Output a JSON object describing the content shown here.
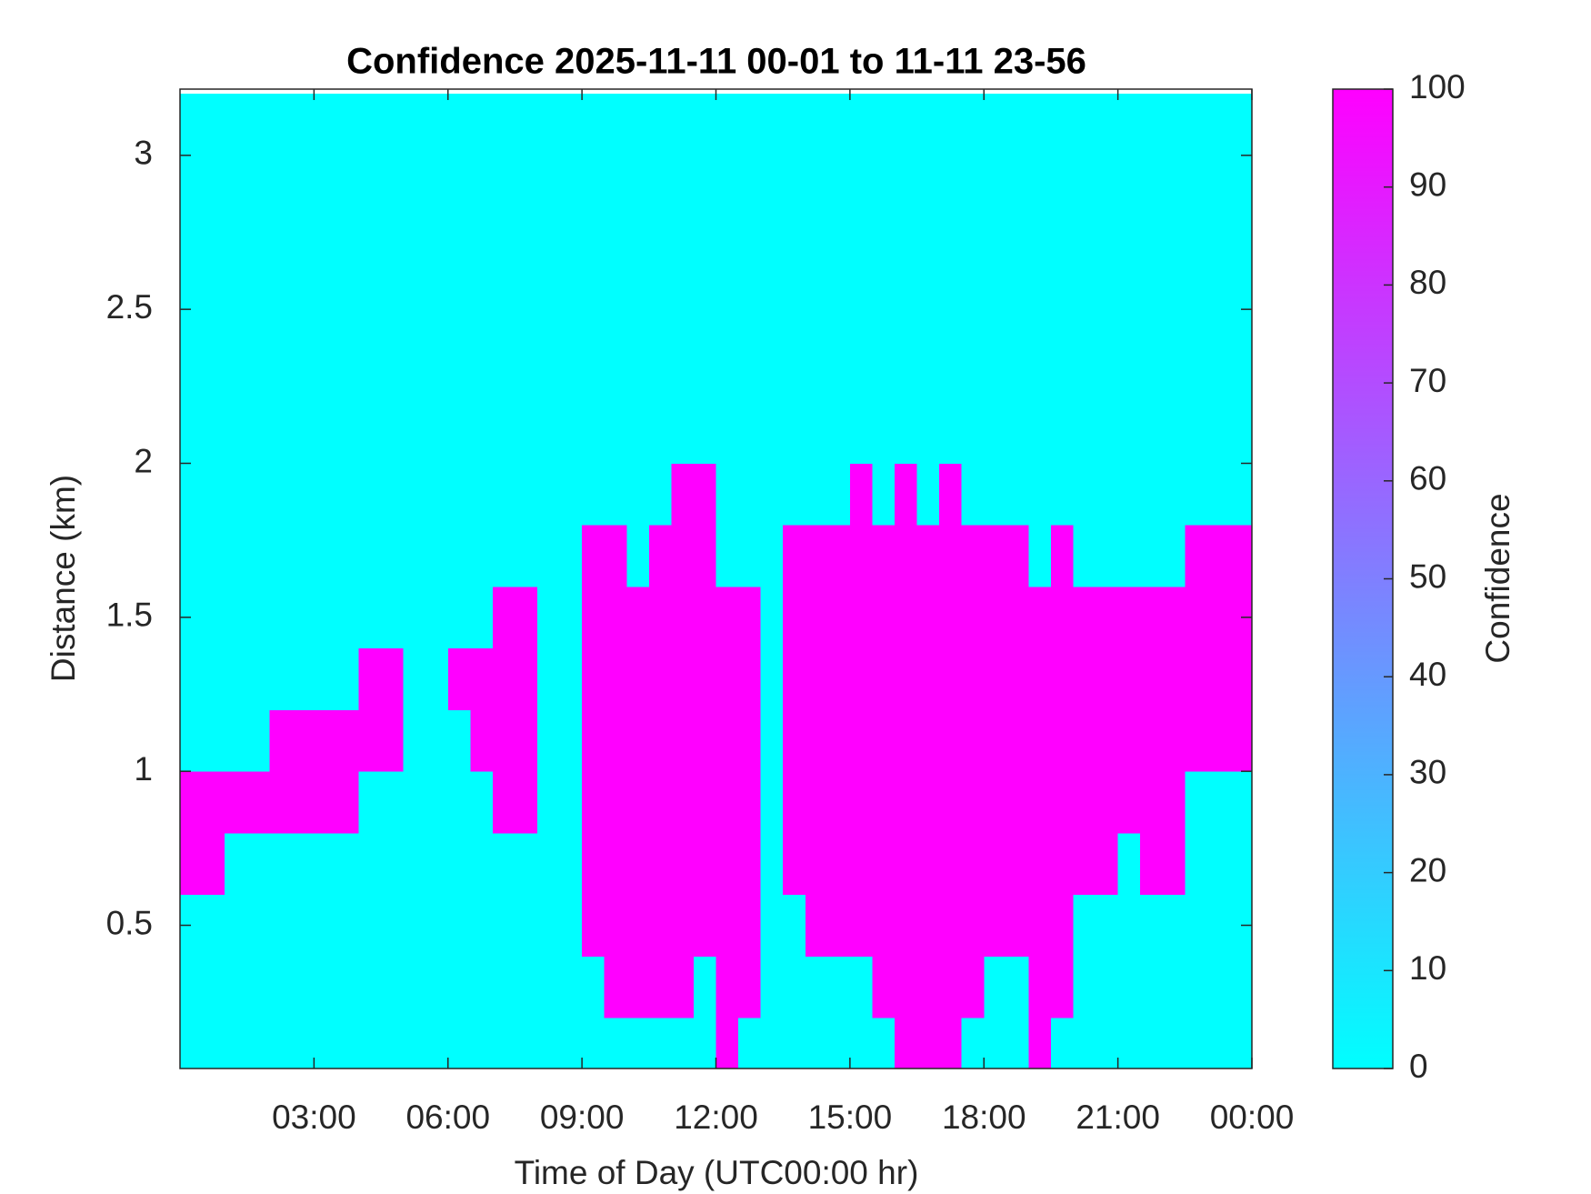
{
  "chart_data": {
    "type": "heatmap",
    "title": "Confidence 2025-11-11 00-01 to 11-11 23-56",
    "x_label": "Time of Day (UTC00:00 hr)",
    "y_label": "Distance (km)",
    "colorbar_label": "Confidence",
    "colormap": [
      "#00ffff",
      "#ff00ff"
    ],
    "clim": [
      0,
      100
    ],
    "cticks": [
      0,
      10,
      20,
      30,
      40,
      50,
      60,
      70,
      80,
      90,
      100
    ],
    "xlim": [
      0,
      24
    ],
    "xticks": [
      {
        "value": 3,
        "label": "03:00"
      },
      {
        "value": 6,
        "label": "06:00"
      },
      {
        "value": 9,
        "label": "09:00"
      },
      {
        "value": 12,
        "label": "12:00"
      },
      {
        "value": 15,
        "label": "15:00"
      },
      {
        "value": 18,
        "label": "18:00"
      },
      {
        "value": 21,
        "label": "21:00"
      },
      {
        "value": 24,
        "label": "00:00"
      }
    ],
    "ylim": [
      0.035,
      3.215
    ],
    "yticks": [
      0.5,
      1,
      1.5,
      2,
      2.5,
      3
    ],
    "x": [
      0.25,
      0.75,
      1.25,
      1.75,
      2.25,
      2.75,
      3.25,
      3.75,
      4.25,
      4.75,
      5.25,
      5.75,
      6.25,
      6.75,
      7.25,
      7.75,
      8.25,
      8.75,
      9.25,
      9.75,
      10.25,
      10.75,
      11.25,
      11.75,
      12.25,
      12.75,
      13.25,
      13.75,
      14.25,
      14.75,
      15.25,
      15.75,
      16.25,
      16.75,
      17.25,
      17.75,
      18.25,
      18.75,
      19.25,
      19.75,
      20.25,
      20.75,
      21.25,
      21.75,
      22.25,
      22.75,
      23.25,
      23.75
    ],
    "y": [
      0.1,
      0.3,
      0.5,
      0.7,
      0.9,
      1.1,
      1.3,
      1.5,
      1.7,
      1.9,
      2.1,
      2.3,
      2.5,
      2.7,
      2.9,
      3.1
    ],
    "z": [
      [
        0,
        0,
        0,
        0,
        0,
        0,
        0,
        0,
        0,
        0,
        0,
        0,
        0,
        0,
        0,
        0,
        0,
        0,
        0,
        0,
        0,
        0,
        0,
        0,
        100,
        0,
        0,
        0,
        0,
        0,
        0,
        0,
        100,
        100,
        100,
        0,
        0,
        0,
        100,
        0,
        0,
        0,
        0,
        0,
        0,
        0,
        0,
        0
      ],
      [
        0,
        0,
        0,
        0,
        0,
        0,
        0,
        0,
        0,
        0,
        0,
        0,
        0,
        0,
        0,
        0,
        0,
        0,
        0,
        100,
        100,
        100,
        100,
        0,
        100,
        100,
        0,
        0,
        0,
        0,
        0,
        100,
        100,
        100,
        100,
        100,
        0,
        0,
        100,
        100,
        0,
        0,
        0,
        0,
        0,
        0,
        0,
        0
      ],
      [
        0,
        0,
        0,
        0,
        0,
        0,
        0,
        0,
        0,
        0,
        0,
        0,
        0,
        0,
        0,
        0,
        0,
        0,
        100,
        100,
        100,
        100,
        100,
        100,
        100,
        100,
        0,
        0,
        100,
        100,
        100,
        100,
        100,
        100,
        100,
        100,
        100,
        100,
        100,
        100,
        0,
        0,
        0,
        0,
        0,
        0,
        0,
        0
      ],
      [
        100,
        100,
        0,
        0,
        0,
        0,
        0,
        0,
        0,
        0,
        0,
        0,
        0,
        0,
        0,
        0,
        0,
        0,
        100,
        100,
        100,
        100,
        100,
        100,
        100,
        100,
        0,
        100,
        100,
        100,
        100,
        100,
        100,
        100,
        100,
        100,
        100,
        100,
        100,
        100,
        100,
        100,
        0,
        100,
        100,
        0,
        0,
        0
      ],
      [
        100,
        100,
        100,
        100,
        100,
        100,
        100,
        100,
        0,
        0,
        0,
        0,
        0,
        0,
        100,
        100,
        0,
        0,
        100,
        100,
        100,
        100,
        100,
        100,
        100,
        100,
        0,
        100,
        100,
        100,
        100,
        100,
        100,
        100,
        100,
        100,
        100,
        100,
        100,
        100,
        100,
        100,
        100,
        100,
        100,
        0,
        0,
        0
      ],
      [
        0,
        0,
        0,
        0,
        100,
        100,
        100,
        100,
        100,
        100,
        0,
        0,
        0,
        100,
        100,
        100,
        0,
        0,
        100,
        100,
        100,
        100,
        100,
        100,
        100,
        100,
        0,
        100,
        100,
        100,
        100,
        100,
        100,
        100,
        100,
        100,
        100,
        100,
        100,
        100,
        100,
        100,
        100,
        100,
        100,
        100,
        100,
        100
      ],
      [
        0,
        0,
        0,
        0,
        0,
        0,
        0,
        0,
        100,
        100,
        0,
        0,
        100,
        100,
        100,
        100,
        0,
        0,
        100,
        100,
        100,
        100,
        100,
        100,
        100,
        100,
        0,
        100,
        100,
        100,
        100,
        100,
        100,
        100,
        100,
        100,
        100,
        100,
        100,
        100,
        100,
        100,
        100,
        100,
        100,
        100,
        100,
        100
      ],
      [
        0,
        0,
        0,
        0,
        0,
        0,
        0,
        0,
        0,
        0,
        0,
        0,
        0,
        0,
        100,
        100,
        0,
        0,
        100,
        100,
        100,
        100,
        100,
        100,
        100,
        100,
        0,
        100,
        100,
        100,
        100,
        100,
        100,
        100,
        100,
        100,
        100,
        100,
        100,
        100,
        100,
        100,
        100,
        100,
        100,
        100,
        100,
        100
      ],
      [
        0,
        0,
        0,
        0,
        0,
        0,
        0,
        0,
        0,
        0,
        0,
        0,
        0,
        0,
        0,
        0,
        0,
        0,
        100,
        100,
        0,
        100,
        100,
        100,
        0,
        0,
        0,
        100,
        100,
        100,
        100,
        100,
        100,
        100,
        100,
        100,
        100,
        100,
        0,
        100,
        0,
        0,
        0,
        0,
        0,
        100,
        100,
        100
      ],
      [
        0,
        0,
        0,
        0,
        0,
        0,
        0,
        0,
        0,
        0,
        0,
        0,
        0,
        0,
        0,
        0,
        0,
        0,
        0,
        0,
        0,
        0,
        100,
        100,
        0,
        0,
        0,
        0,
        0,
        0,
        100,
        0,
        100,
        0,
        100,
        0,
        0,
        0,
        0,
        0,
        0,
        0,
        0,
        0,
        0,
        0,
        0,
        0
      ],
      [
        0,
        0,
        0,
        0,
        0,
        0,
        0,
        0,
        0,
        0,
        0,
        0,
        0,
        0,
        0,
        0,
        0,
        0,
        0,
        0,
        0,
        0,
        0,
        0,
        0,
        0,
        0,
        0,
        0,
        0,
        0,
        0,
        0,
        0,
        0,
        0,
        0,
        0,
        0,
        0,
        0,
        0,
        0,
        0,
        0,
        0,
        0,
        0
      ],
      [
        0,
        0,
        0,
        0,
        0,
        0,
        0,
        0,
        0,
        0,
        0,
        0,
        0,
        0,
        0,
        0,
        0,
        0,
        0,
        0,
        0,
        0,
        0,
        0,
        0,
        0,
        0,
        0,
        0,
        0,
        0,
        0,
        0,
        0,
        0,
        0,
        0,
        0,
        0,
        0,
        0,
        0,
        0,
        0,
        0,
        0,
        0,
        0
      ],
      [
        0,
        0,
        0,
        0,
        0,
        0,
        0,
        0,
        0,
        0,
        0,
        0,
        0,
        0,
        0,
        0,
        0,
        0,
        0,
        0,
        0,
        0,
        0,
        0,
        0,
        0,
        0,
        0,
        0,
        0,
        0,
        0,
        0,
        0,
        0,
        0,
        0,
        0,
        0,
        0,
        0,
        0,
        0,
        0,
        0,
        0,
        0,
        0
      ],
      [
        0,
        0,
        0,
        0,
        0,
        0,
        0,
        0,
        0,
        0,
        0,
        0,
        0,
        0,
        0,
        0,
        0,
        0,
        0,
        0,
        0,
        0,
        0,
        0,
        0,
        0,
        0,
        0,
        0,
        0,
        0,
        0,
        0,
        0,
        0,
        0,
        0,
        0,
        0,
        0,
        0,
        0,
        0,
        0,
        0,
        0,
        0,
        0
      ],
      [
        0,
        0,
        0,
        0,
        0,
        0,
        0,
        0,
        0,
        0,
        0,
        0,
        0,
        0,
        0,
        0,
        0,
        0,
        0,
        0,
        0,
        0,
        0,
        0,
        0,
        0,
        0,
        0,
        0,
        0,
        0,
        0,
        0,
        0,
        0,
        0,
        0,
        0,
        0,
        0,
        0,
        0,
        0,
        0,
        0,
        0,
        0,
        0
      ],
      [
        0,
        0,
        0,
        0,
        0,
        0,
        0,
        0,
        0,
        0,
        0,
        0,
        0,
        0,
        0,
        0,
        0,
        0,
        0,
        0,
        0,
        0,
        0,
        0,
        0,
        0,
        0,
        0,
        0,
        0,
        0,
        0,
        0,
        0,
        0,
        0,
        0,
        0,
        0,
        0,
        0,
        0,
        0,
        0,
        0,
        0,
        0,
        0
      ]
    ]
  }
}
